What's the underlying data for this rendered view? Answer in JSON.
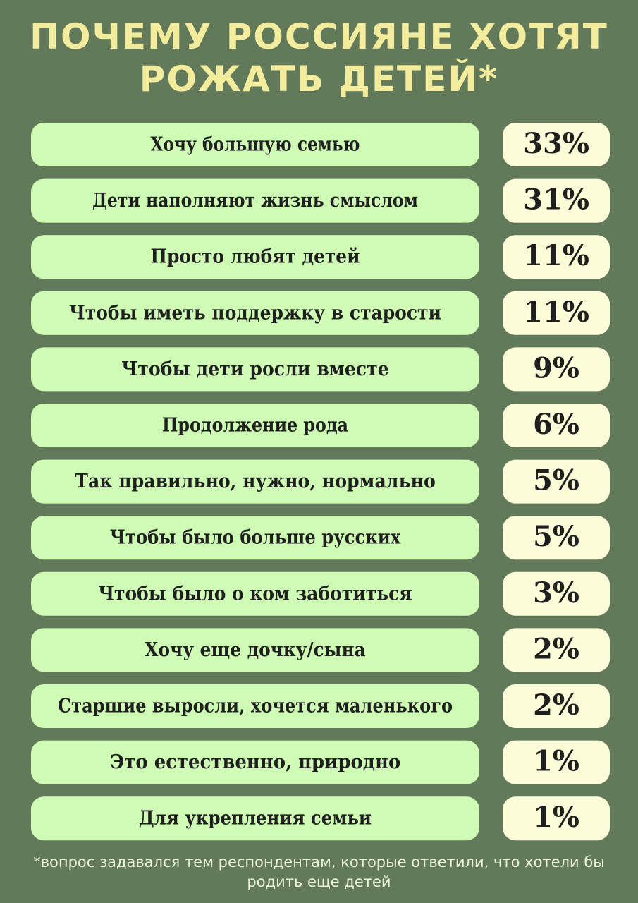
{
  "title": {
    "line1": "ПОЧЕМУ РОССИЯНЕ ХОТЯТ",
    "line2": "РОЖАТЬ ДЕТЕЙ*"
  },
  "footnote": "*вопрос задавался тем респондентам, которые ответили, что хотели бы родить еще детей",
  "colors": {
    "background": "#637a5a",
    "title": "#f3ec9d",
    "label_box": "#cffcb4",
    "value_box": "#fdfcd8",
    "text": "#1f1f1f"
  },
  "chart_data": {
    "type": "table",
    "unit": "%",
    "categories": [
      "Хочу большую семью",
      "Дети наполняют жизнь смыслом",
      "Просто любят детей",
      "Чтобы иметь поддержку в старости",
      "Чтобы дети росли вместе",
      "Продолжение рода",
      "Так правильно, нужно, нормально",
      "Чтобы было больше русских",
      "Чтобы было о ком заботиться",
      "Хочу еще дочку/сына",
      "Старшие выросли, хочется маленького",
      "Это естественно, природно",
      "Для укрепления семьи"
    ],
    "values": [
      33,
      31,
      11,
      11,
      9,
      6,
      5,
      5,
      3,
      2,
      2,
      1,
      1
    ],
    "value_labels": [
      "33%",
      "31%",
      "11%",
      "11%",
      "9%",
      "6%",
      "5%",
      "5%",
      "3%",
      "2%",
      "2%",
      "1%",
      "1%"
    ]
  }
}
